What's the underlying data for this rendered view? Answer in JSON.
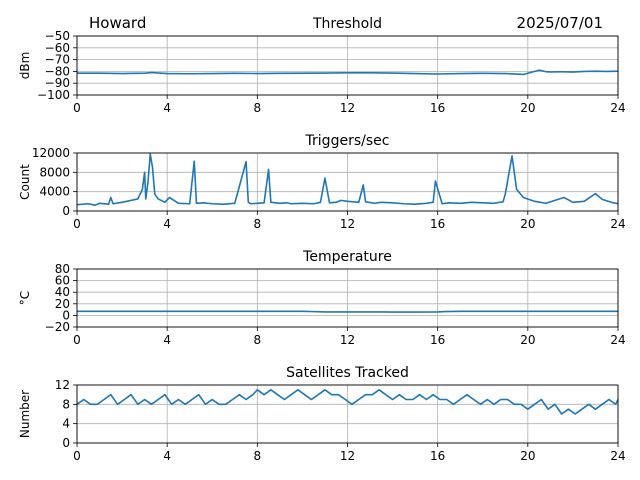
{
  "header": {
    "station": "Howard",
    "date": "2025/07/01"
  },
  "style": {
    "line_color": "#1f77b4",
    "grid_color": "#b0b0b0"
  },
  "chart_data": [
    {
      "type": "line",
      "title": "Threshold",
      "xlabel": "",
      "ylabel": "dBm",
      "xlim": [
        0,
        24
      ],
      "ylim": [
        -100,
        -50
      ],
      "xticks": [
        0,
        4,
        8,
        12,
        16,
        20,
        24
      ],
      "yticks": [
        -100,
        -90,
        -80,
        -70,
        -60,
        -50
      ],
      "ytick_labels": [
        "−100",
        "−90",
        "−80",
        "−70",
        "−60",
        "−50"
      ],
      "grid": true,
      "series": [
        {
          "x": [
            0,
            1,
            2,
            3,
            3.3,
            4,
            5,
            6,
            7,
            8,
            9,
            10,
            11,
            12,
            13,
            14,
            15,
            16,
            17,
            18,
            19,
            19.8,
            20.2,
            20.5,
            20.8,
            21,
            21.5,
            22,
            22.5,
            23,
            23.5,
            24
          ],
          "y": [
            -81.5,
            -81.5,
            -81.8,
            -81.5,
            -81,
            -81.8,
            -82,
            -81.8,
            -81.6,
            -81.8,
            -81.6,
            -81.5,
            -81.4,
            -81.2,
            -81.2,
            -81.4,
            -81.8,
            -82.2,
            -81.8,
            -81.6,
            -81.8,
            -82.6,
            -80.5,
            -79,
            -80.2,
            -80.5,
            -80.3,
            -80.6,
            -80,
            -79.8,
            -80,
            -79.8
          ]
        }
      ]
    },
    {
      "type": "line",
      "title": "Triggers/sec",
      "xlabel": "",
      "ylabel": "Count",
      "xlim": [
        0,
        24
      ],
      "ylim": [
        0,
        12000
      ],
      "xticks": [
        0,
        4,
        8,
        12,
        16,
        20,
        24
      ],
      "yticks": [
        0,
        4000,
        8000,
        12000
      ],
      "grid": true,
      "series": [
        {
          "x": [
            0,
            0.5,
            0.8,
            1,
            1.4,
            1.5,
            1.6,
            2,
            2.4,
            2.7,
            2.9,
            3.0,
            3.05,
            3.15,
            3.25,
            3.35,
            3.45,
            3.6,
            3.9,
            4.1,
            4.5,
            5.0,
            5.2,
            5.3,
            5.6,
            6.0,
            6.5,
            7.0,
            7.5,
            7.6,
            7.7,
            8.0,
            8.3,
            8.5,
            8.6,
            9.0,
            9.3,
            9.5,
            10.0,
            10.5,
            10.8,
            11.0,
            11.2,
            11.5,
            11.7,
            12.0,
            12.5,
            12.7,
            12.8,
            13.2,
            13.5,
            14.0,
            14.5,
            15.0,
            15.5,
            15.8,
            15.9,
            16.2,
            16.5,
            17.0,
            17.5,
            18.0,
            18.5,
            18.9,
            19.0,
            19.3,
            19.5,
            19.8,
            20.3,
            20.8,
            21.2,
            21.6,
            22.0,
            22.5,
            23.0,
            23.3,
            23.7,
            24
          ],
          "y": [
            1300,
            1500,
            1200,
            1600,
            1400,
            2800,
            1500,
            1800,
            2200,
            2500,
            4500,
            8000,
            2500,
            6000,
            11800,
            9000,
            3500,
            2500,
            1800,
            2800,
            1600,
            1500,
            10300,
            1600,
            1700,
            1500,
            1400,
            1600,
            10200,
            1800,
            1500,
            1600,
            1700,
            8600,
            1800,
            1600,
            1700,
            1500,
            1600,
            1500,
            1800,
            6800,
            1700,
            1800,
            2200,
            2000,
            1800,
            5400,
            1900,
            1600,
            1800,
            1700,
            1500,
            1400,
            1600,
            1800,
            6200,
            1500,
            1700,
            1600,
            1800,
            1700,
            1600,
            1900,
            3500,
            11400,
            4500,
            2800,
            2000,
            1600,
            2200,
            2800,
            1800,
            2000,
            3600,
            2400,
            1800,
            1500
          ]
        }
      ]
    },
    {
      "type": "line",
      "title": "Temperature",
      "xlabel": "",
      "ylabel": "°C",
      "xlim": [
        0,
        24
      ],
      "ylim": [
        -20,
        80
      ],
      "xticks": [
        0,
        4,
        8,
        12,
        16,
        20,
        24
      ],
      "yticks": [
        -20,
        0,
        20,
        40,
        60,
        80
      ],
      "ytick_labels": [
        "−20",
        "0",
        "20",
        "40",
        "60",
        "80"
      ],
      "grid": true,
      "series": [
        {
          "x": [
            0,
            2,
            4,
            6,
            8,
            10,
            10.5,
            11,
            12,
            13,
            14,
            15,
            16,
            16.3,
            17,
            18,
            20,
            22,
            24
          ],
          "y": [
            7,
            7,
            7,
            7,
            7,
            7,
            6.5,
            6,
            6,
            6,
            5.8,
            5.8,
            6,
            6.6,
            7,
            7,
            7,
            7,
            7
          ]
        }
      ]
    },
    {
      "type": "line",
      "title": "Satellites Tracked",
      "xlabel": "",
      "ylabel": "Number",
      "xlim": [
        0,
        24
      ],
      "ylim": [
        0,
        12
      ],
      "xticks": [
        0,
        4,
        8,
        12,
        16,
        20,
        24
      ],
      "yticks": [
        0,
        4,
        8,
        12
      ],
      "grid": true,
      "series": [
        {
          "x": [
            0,
            0.3,
            0.6,
            0.9,
            1.2,
            1.5,
            1.8,
            2.1,
            2.4,
            2.7,
            3.0,
            3.3,
            3.6,
            3.9,
            4.2,
            4.5,
            4.8,
            5.1,
            5.4,
            5.7,
            6.0,
            6.3,
            6.6,
            6.9,
            7.2,
            7.5,
            7.8,
            8.0,
            8.3,
            8.6,
            8.9,
            9.2,
            9.5,
            9.8,
            10.1,
            10.4,
            10.7,
            11.0,
            11.3,
            11.6,
            11.9,
            12.2,
            12.5,
            12.8,
            13.1,
            13.4,
            13.7,
            14.0,
            14.3,
            14.6,
            14.9,
            15.2,
            15.5,
            15.8,
            16.1,
            16.4,
            16.7,
            17.0,
            17.3,
            17.6,
            17.9,
            18.2,
            18.5,
            18.8,
            19.1,
            19.4,
            19.7,
            20.0,
            20.3,
            20.6,
            20.9,
            21.2,
            21.5,
            21.8,
            22.1,
            22.4,
            22.7,
            23.0,
            23.3,
            23.6,
            23.9,
            24
          ],
          "y": [
            8,
            9,
            8,
            8,
            9,
            10,
            8,
            9,
            10,
            8,
            9,
            8,
            9,
            10,
            8,
            9,
            8,
            9,
            10,
            8,
            9,
            8,
            8,
            9,
            10,
            9,
            10,
            11,
            10,
            11,
            10,
            9,
            10,
            11,
            10,
            9,
            10,
            11,
            10,
            10,
            9,
            8,
            9,
            10,
            10,
            11,
            10,
            9,
            10,
            9,
            9,
            10,
            9,
            10,
            9,
            9,
            8,
            9,
            10,
            9,
            8,
            9,
            8,
            9,
            9,
            8,
            8,
            7,
            8,
            9,
            7,
            8,
            6,
            7,
            6,
            7,
            8,
            7,
            8,
            9,
            8,
            9
          ]
        }
      ]
    }
  ]
}
